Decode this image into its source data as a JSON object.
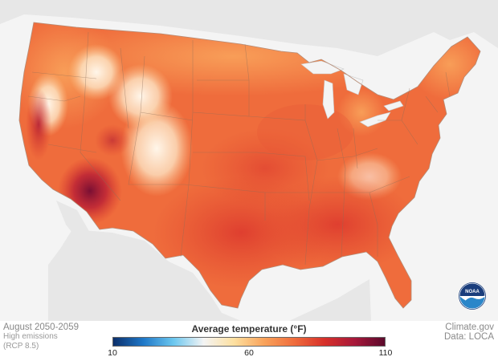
{
  "map": {
    "period": "August 2050-2059",
    "scenario_line1": "High emissions",
    "scenario_line2": "(RCP 8.5)",
    "source": "Climate.gov",
    "data_credit": "Data: LOCA",
    "logo": "noaa-logo"
  },
  "legend": {
    "title": "Average temperature (°F)",
    "min_label": "10",
    "mid_label": "60",
    "max_label": "110",
    "min": 10,
    "max": 110,
    "colors": [
      "#0c2f6b",
      "#1f78c8",
      "#6cc7ef",
      "#f4f4f4",
      "#fde0a0",
      "#f9a35b",
      "#ef6c3c",
      "#d7302a",
      "#a7183a",
      "#5b0a2c"
    ]
  }
}
